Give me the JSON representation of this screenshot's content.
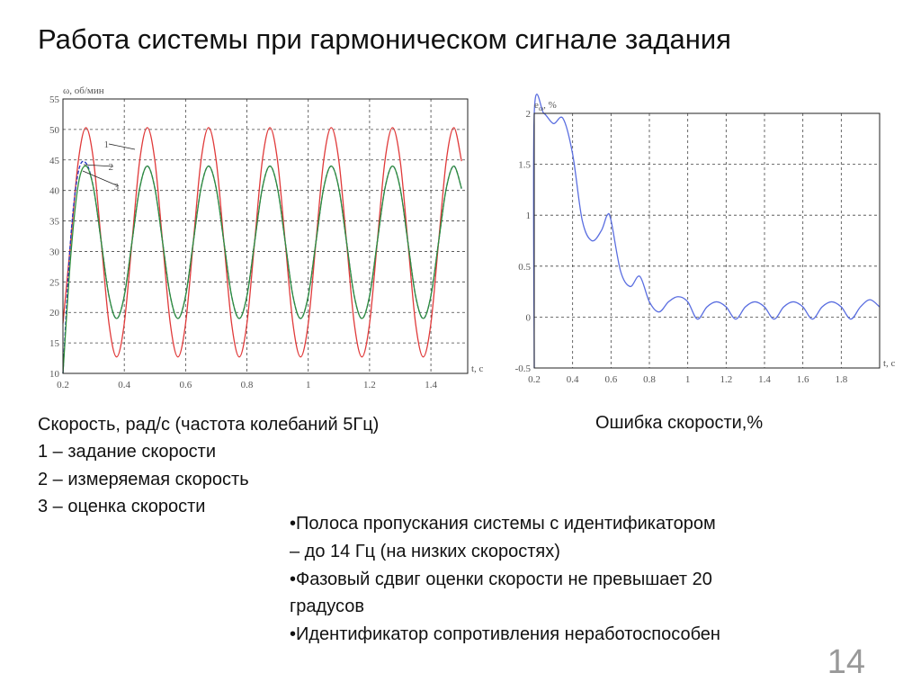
{
  "title": "Работа системы при гармоническом сигнале задания",
  "left_caption": [
    "Скорость, рад/с  (частота колебаний 5Гц)",
    "1 – задание скорости",
    "2 – измеряемая скорость",
    "3 – оценка скорости"
  ],
  "right_caption": "Ошибка скорости,%",
  "bullets": [
    "•Полоса пропускания системы с идентификатором",
    "– до 14 Гц (на низких скоростях)",
    "•Фазовый сдвиг оценки скорости не превышает 20",
    "градусов",
    "•Идентификатор сопротивления неработоспособен"
  ],
  "page_number": "14",
  "chart_data": [
    {
      "type": "line",
      "ylabel": "ω, об/мин",
      "xlabel": "t, с",
      "xlim": [
        0.2,
        1.52
      ],
      "xticks": [
        0.2,
        0.4,
        0.6,
        0.8,
        1,
        1.2,
        1.4
      ],
      "ylim": [
        10,
        55
      ],
      "yticks": [
        10,
        15,
        20,
        25,
        30,
        35,
        40,
        45,
        50,
        55
      ],
      "grid": true,
      "annotations": [
        "1",
        "2",
        "3"
      ],
      "x": [
        0.2,
        0.225,
        0.25,
        0.275,
        0.3,
        0.325,
        0.35,
        0.375,
        0.4,
        0.425,
        0.45,
        0.475,
        0.5,
        0.525,
        0.55,
        0.575,
        0.6,
        0.625,
        0.65,
        0.675,
        0.7,
        0.725,
        0.75,
        0.775,
        0.8,
        0.825,
        0.85,
        0.875,
        0.9,
        0.925,
        0.95,
        0.975,
        1,
        1.025,
        1.05,
        1.075,
        1.1,
        1.125,
        1.15,
        1.175,
        1.2,
        1.225,
        1.25,
        1.275,
        1.3,
        1.325,
        1.35,
        1.375,
        1.4,
        1.425,
        1.45,
        1.475,
        1.5
      ],
      "series": [
        {
          "color": "#e03a3a",
          "values": [
            18.2,
            31.5,
            44.8,
            50.3,
            44.8,
            31.5,
            18.2,
            12.7,
            18.2,
            31.5,
            44.8,
            50.3,
            44.8,
            31.5,
            18.2,
            12.7,
            18.2,
            31.5,
            44.8,
            50.3,
            44.8,
            31.5,
            18.2,
            12.7,
            18.2,
            31.5,
            44.8,
            50.3,
            44.8,
            31.5,
            18.2,
            12.7,
            18.2,
            31.5,
            44.8,
            50.3,
            44.8,
            31.5,
            18.2,
            12.7,
            18.2,
            31.5,
            44.8,
            50.3,
            44.8,
            31.5,
            18.2,
            12.7,
            18.2,
            31.5,
            44.8,
            50.3,
            44.8
          ]
        },
        {
          "color": "#2233c0",
          "values": [
            10,
            32,
            43,
            44.5,
            40.3,
            31.5,
            22.7,
            19,
            22.7,
            31.5,
            40.3,
            44,
            40.3,
            31.5,
            22.7,
            19,
            22.7,
            31.5,
            40.3,
            44,
            40.3,
            31.5,
            22.7,
            19,
            22.7,
            31.5,
            40.3,
            44,
            40.3,
            31.5,
            22.7,
            19,
            22.7,
            31.5,
            40.3,
            44,
            40.3,
            31.5,
            22.7,
            19,
            22.7,
            31.5,
            40.3,
            44,
            40.3,
            31.5,
            22.7,
            19,
            22.7,
            31.5,
            40.3,
            44,
            40.3
          ]
        },
        {
          "color": "#2f8f3a",
          "values": [
            10,
            29,
            41,
            44,
            40.3,
            31.5,
            22.7,
            19,
            22.7,
            31.5,
            40.3,
            44,
            40.3,
            31.5,
            22.7,
            19,
            22.7,
            31.5,
            40.3,
            44,
            40.3,
            31.5,
            22.7,
            19,
            22.7,
            31.5,
            40.3,
            44,
            40.3,
            31.5,
            22.7,
            19,
            22.7,
            31.5,
            40.3,
            44,
            40.3,
            31.5,
            22.7,
            19,
            22.7,
            31.5,
            40.3,
            44,
            40.3,
            31.5,
            22.7,
            19,
            22.7,
            31.5,
            40.3,
            44,
            40.3
          ]
        }
      ]
    },
    {
      "type": "line",
      "ylabel": "e",
      "ylabel_sub": "ω",
      "ylabel_tail": ", %",
      "xlabel": "t, с",
      "xlim": [
        0.2,
        2.0
      ],
      "xticks": [
        0.2,
        0.4,
        0.6,
        0.8,
        1,
        1.2,
        1.4,
        1.6,
        1.8
      ],
      "ylim": [
        -0.5,
        2
      ],
      "yticks": [
        -0.5,
        0,
        0.5,
        1,
        1.5,
        2
      ],
      "grid": true,
      "x": [
        0.2,
        0.2,
        0.25,
        0.3,
        0.35,
        0.4,
        0.45,
        0.5,
        0.55,
        0.58,
        0.6,
        0.65,
        0.7,
        0.75,
        0.8,
        0.85,
        0.9,
        0.95,
        1,
        1.05,
        1.1,
        1.15,
        1.2,
        1.25,
        1.3,
        1.35,
        1.4,
        1.45,
        1.5,
        1.55,
        1.6,
        1.65,
        1.7,
        1.75,
        1.8,
        1.85,
        1.9,
        1.95,
        2.0
      ],
      "series": [
        {
          "color": "#5a6ee0",
          "values": [
            -0.5,
            2,
            2,
            1.9,
            1.95,
            1.6,
            0.95,
            0.75,
            0.85,
            1.0,
            0.95,
            0.45,
            0.3,
            0.4,
            0.15,
            0.05,
            0.15,
            0.2,
            0.15,
            -0.02,
            0.1,
            0.15,
            0.1,
            -0.02,
            0.1,
            0.15,
            0.1,
            -0.02,
            0.1,
            0.15,
            0.1,
            -0.02,
            0.1,
            0.15,
            0.1,
            -0.02,
            0.1,
            0.17,
            0.1
          ]
        }
      ]
    }
  ]
}
